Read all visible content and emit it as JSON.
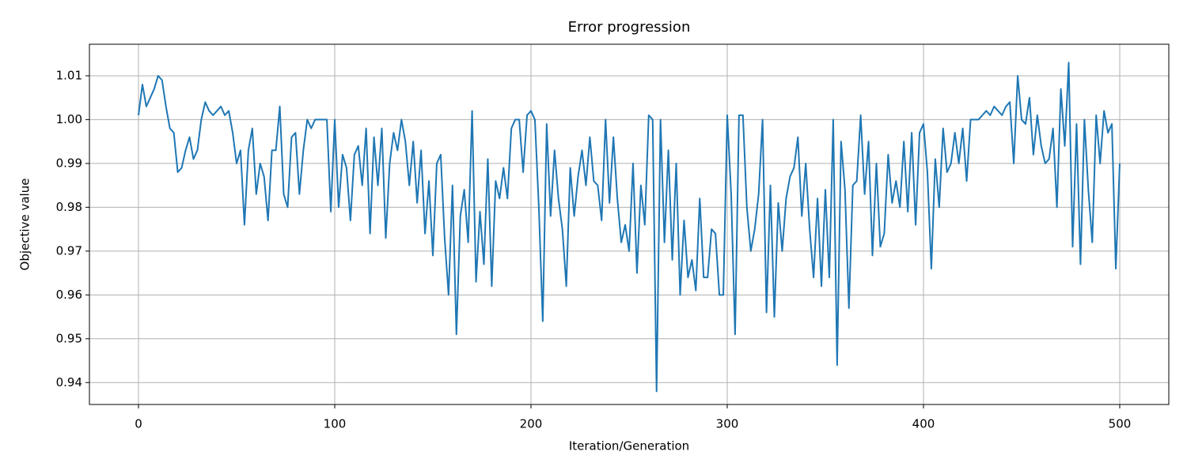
{
  "chart_data": {
    "type": "line",
    "title": "Error progression",
    "x_label": "Iteration/Generation",
    "y_label": "Objective value",
    "x": [
      0,
      2,
      4,
      6,
      8,
      10,
      12,
      14,
      16,
      18,
      20,
      22,
      24,
      26,
      28,
      30,
      32,
      34,
      36,
      38,
      40,
      42,
      44,
      46,
      48,
      50,
      52,
      54,
      56,
      58,
      60,
      62,
      64,
      66,
      68,
      70,
      72,
      74,
      76,
      78,
      80,
      82,
      84,
      86,
      88,
      90,
      92,
      94,
      96,
      98,
      100,
      102,
      104,
      106,
      108,
      110,
      112,
      114,
      116,
      118,
      120,
      122,
      124,
      126,
      128,
      130,
      132,
      134,
      136,
      138,
      140,
      142,
      144,
      146,
      148,
      150,
      152,
      154,
      156,
      158,
      160,
      162,
      164,
      166,
      168,
      170,
      172,
      174,
      176,
      178,
      180,
      182,
      184,
      186,
      188,
      190,
      192,
      194,
      196,
      198,
      200,
      202,
      204,
      206,
      208,
      210,
      212,
      214,
      216,
      218,
      220,
      222,
      224,
      226,
      228,
      230,
      232,
      234,
      236,
      238,
      240,
      242,
      244,
      246,
      248,
      250,
      252,
      254,
      256,
      258,
      260,
      262,
      264,
      266,
      268,
      270,
      272,
      274,
      276,
      278,
      280,
      282,
      284,
      286,
      288,
      290,
      292,
      294,
      296,
      298,
      300,
      302,
      304,
      306,
      308,
      310,
      312,
      314,
      316,
      318,
      320,
      322,
      324,
      326,
      328,
      330,
      332,
      334,
      336,
      338,
      340,
      342,
      344,
      346,
      348,
      350,
      352,
      354,
      356,
      358,
      360,
      362,
      364,
      366,
      368,
      370,
      372,
      374,
      376,
      378,
      380,
      382,
      384,
      386,
      388,
      390,
      392,
      394,
      396,
      398,
      400,
      402,
      404,
      406,
      408,
      410,
      412,
      414,
      416,
      418,
      420,
      422,
      424,
      426,
      428,
      430,
      432,
      434,
      436,
      438,
      440,
      442,
      444,
      446,
      448,
      450,
      452,
      454,
      456,
      458,
      460,
      462,
      464,
      466,
      468,
      470,
      472,
      474,
      476,
      478,
      480,
      482,
      484,
      486,
      488,
      490,
      492,
      494,
      496,
      498,
      500
    ],
    "series": [
      {
        "color": "#1f77b4",
        "values": [
          1.001,
          1.008,
          1.003,
          1.005,
          1.007,
          1.01,
          1.009,
          1.003,
          0.998,
          0.997,
          0.988,
          0.989,
          0.993,
          0.996,
          0.991,
          0.993,
          1.0,
          1.004,
          1.002,
          1.001,
          1.002,
          1.003,
          1.001,
          1.002,
          0.997,
          0.99,
          0.993,
          0.976,
          0.993,
          0.998,
          0.983,
          0.99,
          0.987,
          0.977,
          0.993,
          0.993,
          1.003,
          0.983,
          0.98,
          0.996,
          0.997,
          0.983,
          0.993,
          1.0,
          0.998,
          1.0,
          1.0,
          1.0,
          1.0,
          0.979,
          1.0,
          0.98,
          0.992,
          0.989,
          0.977,
          0.992,
          0.994,
          0.985,
          0.998,
          0.974,
          0.996,
          0.985,
          0.998,
          0.973,
          0.99,
          0.997,
          0.993,
          1.0,
          0.995,
          0.985,
          0.995,
          0.981,
          0.993,
          0.974,
          0.986,
          0.969,
          0.99,
          0.992,
          0.973,
          0.96,
          0.985,
          0.951,
          0.978,
          0.984,
          0.972,
          1.002,
          0.963,
          0.979,
          0.967,
          0.991,
          0.962,
          0.986,
          0.982,
          0.989,
          0.982,
          0.998,
          1.0,
          1.0,
          0.988,
          1.001,
          1.002,
          1.0,
          0.98,
          0.954,
          0.999,
          0.978,
          0.993,
          0.982,
          0.975,
          0.962,
          0.989,
          0.978,
          0.987,
          0.993,
          0.985,
          0.996,
          0.986,
          0.985,
          0.977,
          1.0,
          0.981,
          0.996,
          0.982,
          0.972,
          0.976,
          0.97,
          0.99,
          0.965,
          0.985,
          0.976,
          1.001,
          1.0,
          0.938,
          1.0,
          0.972,
          0.993,
          0.968,
          0.99,
          0.96,
          0.977,
          0.964,
          0.968,
          0.961,
          0.982,
          0.964,
          0.964,
          0.975,
          0.974,
          0.96,
          0.96,
          1.001,
          0.983,
          0.951,
          1.001,
          1.001,
          0.98,
          0.97,
          0.975,
          0.983,
          1.0,
          0.956,
          0.985,
          0.955,
          0.981,
          0.97,
          0.982,
          0.987,
          0.989,
          0.996,
          0.978,
          0.99,
          0.975,
          0.964,
          0.982,
          0.962,
          0.984,
          0.964,
          1.0,
          0.944,
          0.995,
          0.984,
          0.957,
          0.985,
          0.986,
          1.001,
          0.983,
          0.995,
          0.969,
          0.99,
          0.971,
          0.974,
          0.992,
          0.981,
          0.986,
          0.98,
          0.995,
          0.979,
          0.997,
          0.976,
          0.997,
          0.999,
          0.988,
          0.966,
          0.991,
          0.98,
          0.998,
          0.988,
          0.99,
          0.997,
          0.99,
          0.998,
          0.986,
          1.0,
          1.0,
          1.0,
          1.001,
          1.002,
          1.001,
          1.003,
          1.002,
          1.001,
          1.003,
          1.004,
          0.99,
          1.01,
          1.0,
          0.999,
          1.005,
          0.992,
          1.001,
          0.994,
          0.99,
          0.991,
          0.998,
          0.98,
          1.007,
          0.994,
          1.013,
          0.971,
          0.999,
          0.967,
          1.0,
          0.984,
          0.972,
          1.001,
          0.99,
          1.002,
          0.997,
          0.999,
          0.966,
          0.99
        ]
      }
    ],
    "xlim": [
      -25,
      525
    ],
    "xticks": [
      0,
      100,
      200,
      300,
      400,
      500
    ],
    "ylim": [
      0.935,
      1.0172
    ],
    "yticks": [
      0.94,
      0.95,
      0.96,
      0.97,
      0.98,
      0.99,
      {
        "value": 1,
        "label": "1.00"
      },
      1.01
    ],
    "grid": true
  }
}
